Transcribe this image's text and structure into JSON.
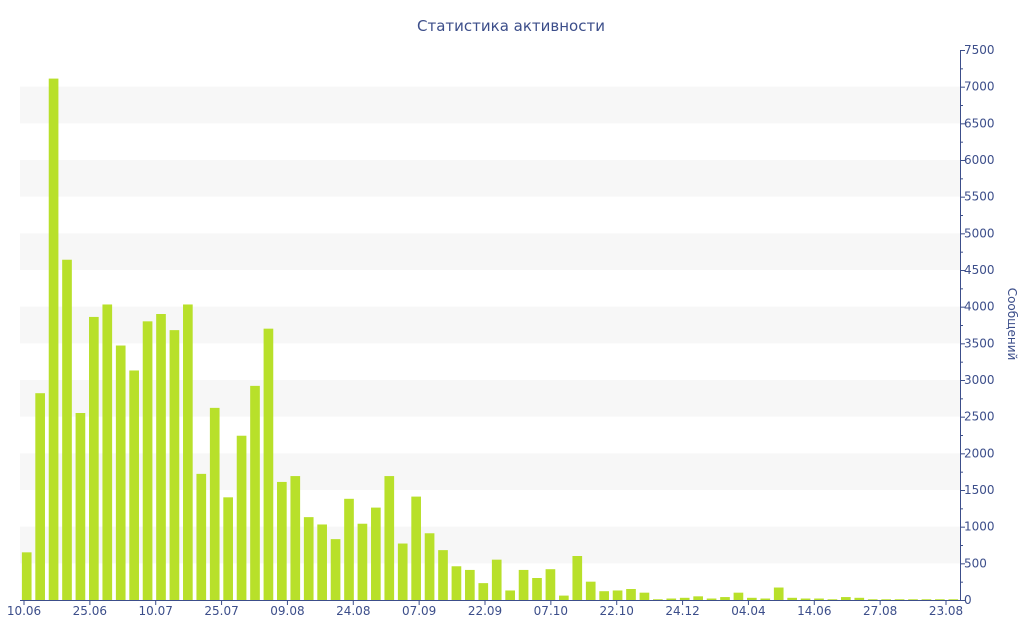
{
  "chart_data": {
    "type": "bar",
    "title": "Статистика активности",
    "xlabel": "",
    "ylabel": "Сообщений",
    "ylim": [
      0,
      7500
    ],
    "y_ticks": [
      0,
      500,
      1000,
      1500,
      2000,
      2500,
      3000,
      3500,
      4000,
      4500,
      5000,
      5500,
      6000,
      6500,
      7000,
      7500
    ],
    "y_axis_side": "right",
    "x_tick_labels": [
      "10.06",
      "25.06",
      "10.07",
      "25.07",
      "09.08",
      "24.08",
      "07.09",
      "22.09",
      "07.10",
      "22.10",
      "24.12",
      "04.04",
      "14.06",
      "27.08",
      "23.08"
    ],
    "grid": "alternating horizontal bands",
    "bar_color": "#b8e02a",
    "band_color": "#f7f7f7",
    "text_color": "#3c4e8a",
    "values": [
      650,
      2820,
      7110,
      4640,
      2550,
      3860,
      4030,
      3470,
      3130,
      3800,
      3900,
      3680,
      4030,
      1720,
      2620,
      1400,
      2240,
      2920,
      3700,
      1610,
      1690,
      1130,
      1030,
      830,
      1380,
      1040,
      1260,
      1690,
      770,
      1410,
      910,
      680,
      460,
      410,
      230,
      550,
      130,
      410,
      300,
      420,
      60,
      600,
      250,
      120,
      130,
      150,
      100,
      10,
      20,
      30,
      50,
      20,
      40,
      100,
      30,
      20,
      170,
      30,
      20,
      20,
      10,
      40,
      30,
      10,
      10,
      10,
      10,
      10,
      10,
      10
    ]
  }
}
